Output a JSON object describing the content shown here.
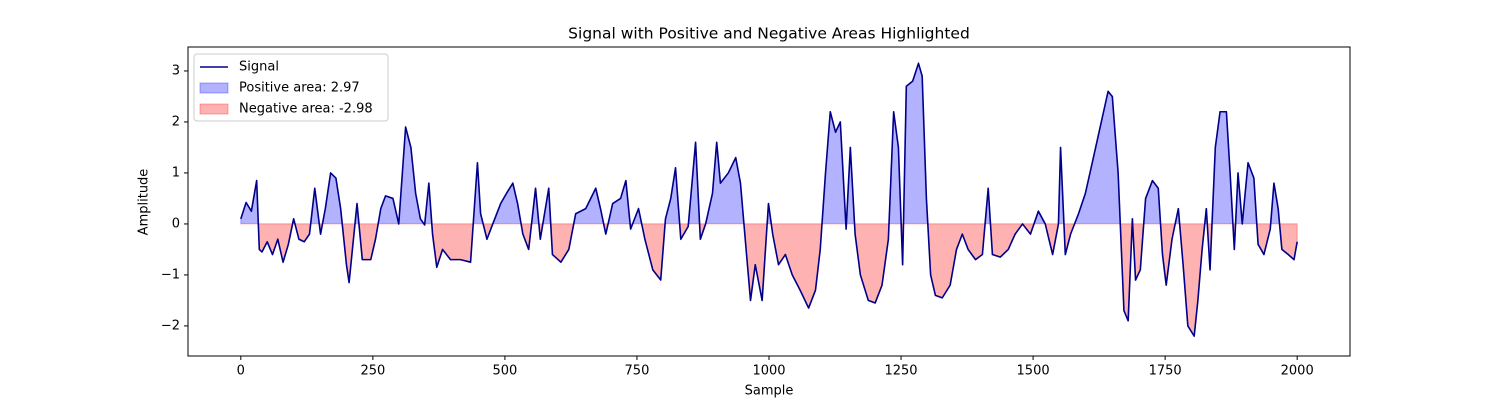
{
  "chart_data": {
    "type": "line",
    "title": "Signal with Positive and Negative Areas Highlighted",
    "x_label": "Sample",
    "y_label": "Amplitude",
    "x": [
      0,
      10,
      20,
      30,
      35,
      40,
      50,
      60,
      70,
      80,
      90,
      100,
      110,
      120,
      130,
      140,
      151,
      160,
      170,
      180,
      189,
      200,
      205,
      220,
      230,
      246,
      255,
      265,
      274,
      288,
      299,
      312,
      322,
      331,
      340,
      348,
      356,
      363,
      371,
      382,
      397,
      416,
      435,
      448,
      454,
      466,
      477,
      492,
      503,
      515,
      524,
      534,
      545,
      558,
      567,
      583,
      590,
      606,
      621,
      634,
      653,
      672,
      681,
      691,
      704,
      719,
      729,
      738,
      753,
      765,
      780,
      795,
      804,
      814,
      823,
      833,
      847,
      861,
      870,
      880,
      893,
      901,
      908,
      923,
      937,
      946,
      955,
      965,
      974,
      987,
      999,
      1007,
      1018,
      1031,
      1044,
      1059,
      1075,
      1088,
      1097,
      1107,
      1116,
      1126,
      1135,
      1146,
      1154,
      1163,
      1173,
      1188,
      1201,
      1214,
      1226,
      1236,
      1245,
      1253,
      1260,
      1272,
      1283,
      1290,
      1298,
      1306,
      1315,
      1328,
      1343,
      1355,
      1366,
      1377,
      1391,
      1404,
      1415,
      1423,
      1438,
      1453,
      1466,
      1480,
      1495,
      1510,
      1523,
      1537,
      1548,
      1552,
      1561,
      1571,
      1586,
      1599,
      1612,
      1627,
      1642,
      1650,
      1661,
      1672,
      1680,
      1688,
      1694,
      1703,
      1713,
      1726,
      1737,
      1745,
      1752,
      1763,
      1775,
      1784,
      1793,
      1805,
      1812,
      1820,
      1828,
      1835,
      1845,
      1854,
      1866,
      1873,
      1881,
      1888,
      1896,
      1907,
      1918,
      1926,
      1937,
      1949,
      1956,
      1964,
      1971,
      1983,
      1994,
      2000
    ],
    "series": [
      {
        "name": "Signal",
        "color": "#00008b",
        "values": [
          0.1,
          0.42,
          0.25,
          0.85,
          -0.5,
          -0.55,
          -0.35,
          -0.6,
          -0.3,
          -0.75,
          -0.4,
          0.1,
          -0.3,
          -0.35,
          -0.2,
          0.7,
          -0.2,
          0.3,
          1.0,
          0.9,
          0.3,
          -0.8,
          -1.15,
          0.4,
          -0.7,
          -0.7,
          -0.3,
          0.3,
          0.55,
          0.5,
          0.0,
          1.9,
          1.5,
          0.6,
          0.1,
          -0.02,
          0.8,
          -0.2,
          -0.85,
          -0.5,
          -0.7,
          -0.7,
          -0.75,
          1.2,
          0.2,
          -0.3,
          0.0,
          0.4,
          0.6,
          0.8,
          0.4,
          -0.2,
          -0.5,
          0.7,
          -0.3,
          0.7,
          -0.6,
          -0.75,
          -0.5,
          0.2,
          0.3,
          0.7,
          0.3,
          -0.2,
          0.4,
          0.5,
          0.85,
          -0.1,
          0.3,
          -0.3,
          -0.9,
          -1.1,
          0.1,
          0.5,
          1.1,
          -0.3,
          -0.05,
          1.6,
          -0.3,
          0.0,
          0.6,
          1.6,
          0.8,
          1.0,
          1.3,
          0.8,
          -0.3,
          -1.5,
          -0.8,
          -1.5,
          0.4,
          -0.2,
          -0.8,
          -0.6,
          -1.0,
          -1.3,
          -1.65,
          -1.3,
          -0.5,
          1.0,
          2.2,
          1.8,
          2.0,
          -0.1,
          1.5,
          -0.2,
          -1.0,
          -1.5,
          -1.55,
          -1.2,
          -0.3,
          2.2,
          1.5,
          -0.8,
          2.7,
          2.8,
          3.15,
          2.9,
          0.5,
          -1.0,
          -1.4,
          -1.45,
          -1.2,
          -0.5,
          -0.2,
          -0.5,
          -0.7,
          -0.6,
          0.7,
          -0.6,
          -0.65,
          -0.5,
          -0.2,
          0.0,
          -0.2,
          0.25,
          0.0,
          -0.6,
          0.0,
          1.5,
          -0.6,
          -0.2,
          0.2,
          0.6,
          1.2,
          1.9,
          2.6,
          2.5,
          1.0,
          -1.7,
          -1.9,
          0.1,
          -1.1,
          -0.9,
          0.5,
          0.85,
          0.7,
          -0.6,
          -1.2,
          -0.3,
          0.3,
          -0.8,
          -2.0,
          -2.2,
          -1.5,
          -0.5,
          0.3,
          -0.9,
          1.5,
          2.2,
          2.2,
          1.0,
          -0.5,
          1.0,
          0.0,
          1.2,
          0.9,
          -0.4,
          -0.6,
          -0.1,
          0.8,
          0.3,
          -0.5,
          -0.6,
          -0.7,
          -0.35
        ]
      }
    ],
    "areas": [
      {
        "name": "Positive area: 2.97",
        "color": "#0000ff",
        "side": "positive"
      },
      {
        "name": "Negative area: -2.98",
        "color": "#ff0000",
        "side": "negative"
      }
    ],
    "xlim": [
      -100,
      2100
    ],
    "ylim": [
      -2.59,
      3.47
    ],
    "xticks": [
      0,
      250,
      500,
      750,
      1000,
      1250,
      1500,
      1750,
      2000
    ],
    "yticks": [
      -2,
      -1,
      0,
      1,
      2,
      3
    ],
    "legend": "upper left"
  }
}
